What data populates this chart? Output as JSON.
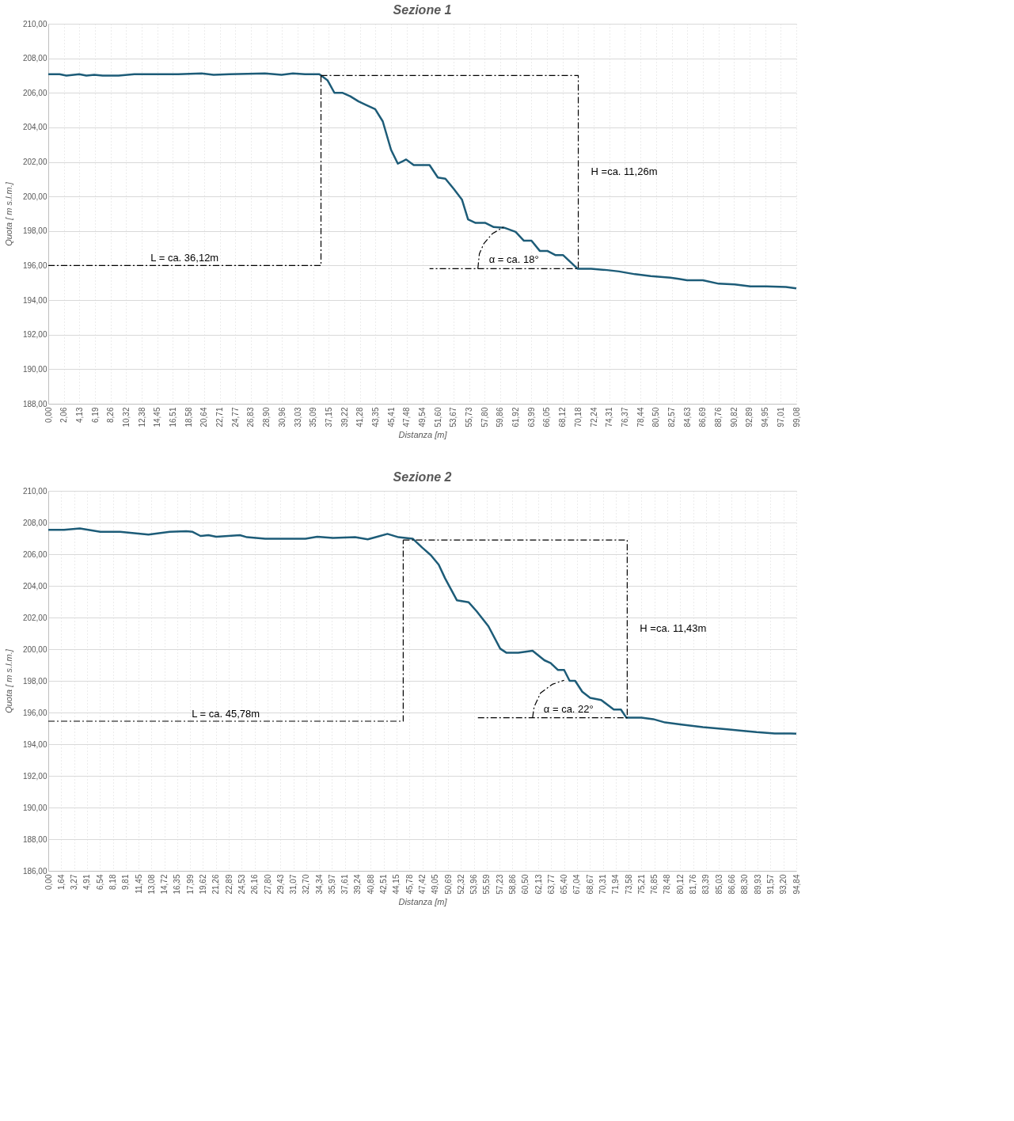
{
  "chart_data": [
    {
      "type": "line",
      "title": "Sezione 1",
      "xlabel": "Distanza [m]",
      "ylabel": "Quota [ m s.l.m.]",
      "grid": true,
      "xlim": [
        0,
        99.08
      ],
      "ylim": [
        188,
        210
      ],
      "yticks": [
        {
          "value": 188,
          "label": "188,00"
        },
        {
          "value": 190,
          "label": "190,00"
        },
        {
          "value": 192,
          "label": "192,00"
        },
        {
          "value": 194,
          "label": "194,00"
        },
        {
          "value": 196,
          "label": "196,00"
        },
        {
          "value": 198,
          "label": "198,00"
        },
        {
          "value": 200,
          "label": "200,00"
        },
        {
          "value": 202,
          "label": "202,00"
        },
        {
          "value": 204,
          "label": "204,00"
        },
        {
          "value": 206,
          "label": "206,00"
        },
        {
          "value": 208,
          "label": "208,00"
        },
        {
          "value": 210,
          "label": "210,00"
        }
      ],
      "xticks": [
        {
          "value": 0,
          "label": "0,00"
        },
        {
          "value": 2.06,
          "label": "2,06"
        },
        {
          "value": 4.13,
          "label": "4,13"
        },
        {
          "value": 6.19,
          "label": "6,19"
        },
        {
          "value": 8.26,
          "label": "8,26"
        },
        {
          "value": 10.32,
          "label": "10,32"
        },
        {
          "value": 12.38,
          "label": "12,38"
        },
        {
          "value": 14.45,
          "label": "14,45"
        },
        {
          "value": 16.51,
          "label": "16,51"
        },
        {
          "value": 18.58,
          "label": "18,58"
        },
        {
          "value": 20.64,
          "label": "20,64"
        },
        {
          "value": 22.71,
          "label": "22,71"
        },
        {
          "value": 24.77,
          "label": "24,77"
        },
        {
          "value": 26.83,
          "label": "26,83"
        },
        {
          "value": 28.9,
          "label": "28,90"
        },
        {
          "value": 30.96,
          "label": "30,96"
        },
        {
          "value": 33.03,
          "label": "33,03"
        },
        {
          "value": 35.09,
          "label": "35,09"
        },
        {
          "value": 37.15,
          "label": "37,15"
        },
        {
          "value": 39.22,
          "label": "39,22"
        },
        {
          "value": 41.28,
          "label": "41,28"
        },
        {
          "value": 43.35,
          "label": "43,35"
        },
        {
          "value": 45.41,
          "label": "45,41"
        },
        {
          "value": 47.48,
          "label": "47,48"
        },
        {
          "value": 49.54,
          "label": "49,54"
        },
        {
          "value": 51.6,
          "label": "51,60"
        },
        {
          "value": 53.67,
          "label": "53,67"
        },
        {
          "value": 55.73,
          "label": "55,73"
        },
        {
          "value": 57.8,
          "label": "57,80"
        },
        {
          "value": 59.86,
          "label": "59,86"
        },
        {
          "value": 61.92,
          "label": "61,92"
        },
        {
          "value": 63.99,
          "label": "63,99"
        },
        {
          "value": 66.05,
          "label": "66,05"
        },
        {
          "value": 68.12,
          "label": "68,12"
        },
        {
          "value": 70.18,
          "label": "70,18"
        },
        {
          "value": 72.24,
          "label": "72,24"
        },
        {
          "value": 74.31,
          "label": "74,31"
        },
        {
          "value": 76.37,
          "label": "76,37"
        },
        {
          "value": 78.44,
          "label": "78,44"
        },
        {
          "value": 80.5,
          "label": "80,50"
        },
        {
          "value": 82.57,
          "label": "82,57"
        },
        {
          "value": 84.63,
          "label": "84,63"
        },
        {
          "value": 86.69,
          "label": "86,69"
        },
        {
          "value": 88.76,
          "label": "88,76"
        },
        {
          "value": 90.82,
          "label": "90,82"
        },
        {
          "value": 92.89,
          "label": "92,89"
        },
        {
          "value": 94.95,
          "label": "94,95"
        },
        {
          "value": 97.01,
          "label": "97,01"
        },
        {
          "value": 99.08,
          "label": "99,08"
        }
      ],
      "series": [
        {
          "line_style": "solid",
          "color": "#1d5c78",
          "x": [
            0,
            1.5,
            2.4,
            4.1,
            5.05,
            6.1,
            7.2,
            9.3,
            11.4,
            14.0,
            17.2,
            20.3,
            21.9,
            24.0,
            28.7,
            30.9,
            32.4,
            34.0,
            35.9,
            37.0,
            37.9,
            39.0,
            40.0,
            41.1,
            42.1,
            43.3,
            44.3,
            45.4,
            46.3,
            47.4,
            48.4,
            50.5,
            51.6,
            52.6,
            53.7,
            54.8,
            55.6,
            56.6,
            57.9,
            59.0,
            60.4,
            61.9,
            63.0,
            64.0,
            65.1,
            66.1,
            67.2,
            68.2,
            70.1,
            71.9,
            74.0,
            75.6,
            77.7,
            79.8,
            82.4,
            83.5,
            84.6,
            86.7,
            88.8,
            90.9,
            93.0,
            95.1,
            97.7,
            99.08
          ],
          "values": [
            207.08,
            207.08,
            207.0,
            207.08,
            207.0,
            207.04,
            207.0,
            207.0,
            207.08,
            207.08,
            207.08,
            207.12,
            207.04,
            207.08,
            207.12,
            207.04,
            207.12,
            207.08,
            207.08,
            206.72,
            206.0,
            206.0,
            205.8,
            205.5,
            205.3,
            205.06,
            204.35,
            202.7,
            201.9,
            202.14,
            201.82,
            201.82,
            201.1,
            201.03,
            200.44,
            199.81,
            198.67,
            198.47,
            198.47,
            198.23,
            198.19,
            197.95,
            197.44,
            197.44,
            196.85,
            196.85,
            196.6,
            196.6,
            195.82,
            195.82,
            195.74,
            195.66,
            195.5,
            195.39,
            195.3,
            195.23,
            195.15,
            195.15,
            194.95,
            194.91,
            194.8,
            194.8,
            194.76,
            194.68
          ]
        },
        {
          "line_style": "dashed",
          "color": "#000000",
          "x": [
            0,
            36.12,
            36.12
          ],
          "values": [
            196.0,
            196.0,
            207.0
          ]
        },
        {
          "line_style": "dashed",
          "color": "#000000",
          "x": [
            36.12,
            70.2,
            70.2,
            50.5
          ],
          "values": [
            207.0,
            207.0,
            195.82,
            195.82
          ]
        },
        {
          "line_style": "dashed",
          "color": "#000000",
          "x": [
            56.9,
            57.1,
            57.7,
            58.8,
            60.3
          ],
          "values": [
            195.82,
            196.69,
            197.28,
            197.84,
            198.23
          ]
        }
      ],
      "annotations": [
        "L = ca. 36,12m",
        "H =ca. 11,26m",
        "α = ca. 18°"
      ]
    },
    {
      "type": "line",
      "title": "Sezione 2",
      "xlabel": "Distanza [m]",
      "ylabel": "Quota [ m s.l.m.]",
      "grid": true,
      "xlim": [
        0,
        94.84
      ],
      "ylim": [
        186,
        210
      ],
      "yticks": [
        {
          "value": 186,
          "label": "186,00"
        },
        {
          "value": 188,
          "label": "188,00"
        },
        {
          "value": 190,
          "label": "190,00"
        },
        {
          "value": 192,
          "label": "192,00"
        },
        {
          "value": 194,
          "label": "194,00"
        },
        {
          "value": 196,
          "label": "196,00"
        },
        {
          "value": 198,
          "label": "198,00"
        },
        {
          "value": 200,
          "label": "200,00"
        },
        {
          "value": 202,
          "label": "202,00"
        },
        {
          "value": 204,
          "label": "204,00"
        },
        {
          "value": 206,
          "label": "206,00"
        },
        {
          "value": 208,
          "label": "208,00"
        },
        {
          "value": 210,
          "label": "210,00"
        }
      ],
      "xticks": [
        {
          "value": 0,
          "label": "0,00"
        },
        {
          "value": 1.64,
          "label": "1,64"
        },
        {
          "value": 3.27,
          "label": "3,27"
        },
        {
          "value": 4.91,
          "label": "4,91"
        },
        {
          "value": 6.54,
          "label": "6,54"
        },
        {
          "value": 8.18,
          "label": "8,18"
        },
        {
          "value": 9.81,
          "label": "9,81"
        },
        {
          "value": 11.45,
          "label": "11,45"
        },
        {
          "value": 13.08,
          "label": "13,08"
        },
        {
          "value": 14.72,
          "label": "14,72"
        },
        {
          "value": 16.35,
          "label": "16,35"
        },
        {
          "value": 17.99,
          "label": "17,99"
        },
        {
          "value": 19.62,
          "label": "19,62"
        },
        {
          "value": 21.26,
          "label": "21,26"
        },
        {
          "value": 22.89,
          "label": "22,89"
        },
        {
          "value": 24.53,
          "label": "24,53"
        },
        {
          "value": 26.16,
          "label": "26,16"
        },
        {
          "value": 27.8,
          "label": "27,80"
        },
        {
          "value": 29.43,
          "label": "29,43"
        },
        {
          "value": 31.07,
          "label": "31,07"
        },
        {
          "value": 32.7,
          "label": "32,70"
        },
        {
          "value": 34.34,
          "label": "34,34"
        },
        {
          "value": 35.97,
          "label": "35,97"
        },
        {
          "value": 37.61,
          "label": "37,61"
        },
        {
          "value": 39.24,
          "label": "39,24"
        },
        {
          "value": 40.88,
          "label": "40,88"
        },
        {
          "value": 42.51,
          "label": "42,51"
        },
        {
          "value": 44.15,
          "label": "44,15"
        },
        {
          "value": 45.78,
          "label": "45,78"
        },
        {
          "value": 47.42,
          "label": "47,42"
        },
        {
          "value": 49.05,
          "label": "49,05"
        },
        {
          "value": 50.69,
          "label": "50,69"
        },
        {
          "value": 52.32,
          "label": "52,32"
        },
        {
          "value": 53.96,
          "label": "53,96"
        },
        {
          "value": 55.59,
          "label": "55,59"
        },
        {
          "value": 57.23,
          "label": "57,23"
        },
        {
          "value": 58.86,
          "label": "58,86"
        },
        {
          "value": 60.5,
          "label": "60,50"
        },
        {
          "value": 62.13,
          "label": "62,13"
        },
        {
          "value": 63.77,
          "label": "63,77"
        },
        {
          "value": 65.4,
          "label": "65,40"
        },
        {
          "value": 67.04,
          "label": "67,04"
        },
        {
          "value": 68.67,
          "label": "68,67"
        },
        {
          "value": 70.31,
          "label": "70,31"
        },
        {
          "value": 71.94,
          "label": "71,94"
        },
        {
          "value": 73.58,
          "label": "73,58"
        },
        {
          "value": 75.21,
          "label": "75,21"
        },
        {
          "value": 76.85,
          "label": "76,85"
        },
        {
          "value": 78.48,
          "label": "78,48"
        },
        {
          "value": 80.12,
          "label": "80,12"
        },
        {
          "value": 81.76,
          "label": "81,76"
        },
        {
          "value": 83.39,
          "label": "83,39"
        },
        {
          "value": 85.03,
          "label": "85,03"
        },
        {
          "value": 86.66,
          "label": "86,66"
        },
        {
          "value": 88.3,
          "label": "88,30"
        },
        {
          "value": 89.93,
          "label": "89,93"
        },
        {
          "value": 91.57,
          "label": "91,57"
        },
        {
          "value": 93.2,
          "label": "93,20"
        },
        {
          "value": 94.84,
          "label": "94,84"
        }
      ],
      "series": [
        {
          "line_style": "solid",
          "color": "#1d5c78",
          "x": [
            0,
            2.0,
            4.0,
            6.6,
            9.1,
            12.7,
            15.4,
            17.5,
            18.3,
            19.3,
            20.3,
            21.3,
            24.3,
            25.2,
            27.5,
            32.6,
            34.1,
            36.1,
            38.9,
            40.5,
            41.7,
            43.0,
            44.4,
            46.2,
            47.4,
            48.5,
            49.5,
            50.3,
            51.8,
            53.3,
            54.3,
            55.8,
            57.3,
            58.1,
            59.6,
            61.4,
            62.9,
            63.7,
            64.6,
            65.4,
            66.1,
            66.8,
            67.7,
            68.7,
            70.1,
            71.7,
            72.6,
            73.3,
            75.2,
            76.7,
            78.2,
            80.3,
            83.0,
            86.1,
            87.9,
            89.8,
            92.1,
            94.1,
            94.84
          ],
          "values": [
            207.54,
            207.54,
            207.63,
            207.41,
            207.41,
            207.24,
            207.41,
            207.45,
            207.41,
            207.15,
            207.2,
            207.1,
            207.2,
            207.07,
            206.98,
            206.98,
            207.1,
            207.02,
            207.07,
            206.94,
            207.1,
            207.28,
            207.07,
            206.98,
            206.42,
            205.94,
            205.34,
            204.48,
            203.09,
            202.96,
            202.4,
            201.45,
            200.03,
            199.77,
            199.77,
            199.9,
            199.3,
            199.12,
            198.69,
            198.69,
            198.0,
            198.0,
            197.31,
            196.92,
            196.79,
            196.19,
            196.19,
            195.67,
            195.67,
            195.58,
            195.37,
            195.24,
            195.07,
            194.94,
            194.85,
            194.76,
            194.68,
            194.68,
            194.66
          ]
        },
        {
          "line_style": "dashed",
          "color": "#000000",
          "x": [
            0,
            45.0,
            45.0
          ],
          "values": [
            195.45,
            195.45,
            206.89
          ]
        },
        {
          "line_style": "dashed",
          "color": "#000000",
          "x": [
            45.0,
            73.4,
            73.4,
            54.2
          ],
          "values": [
            206.89,
            206.89,
            195.67,
            195.67
          ]
        },
        {
          "line_style": "dashed",
          "color": "#000000",
          "x": [
            61.4,
            61.6,
            62.4,
            63.9,
            65.4
          ],
          "values": [
            195.67,
            196.36,
            197.22,
            197.78,
            198.04
          ]
        }
      ],
      "annotations": [
        "L = ca. 45,78m",
        "H =ca. 11,43m",
        "α = ca. 22°"
      ]
    }
  ]
}
